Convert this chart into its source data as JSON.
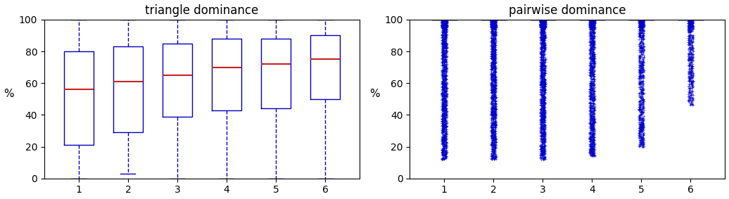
{
  "triangle_title": "triangle dominance",
  "pairwise_title": "pairwise dominance",
  "ylabel": "%",
  "iterations": [
    1,
    2,
    3,
    4,
    5,
    6
  ],
  "triangle_stats": {
    "medians": [
      56,
      61,
      65,
      70,
      72,
      75
    ],
    "q1": [
      21,
      29,
      39,
      43,
      44,
      50
    ],
    "q3": [
      80,
      83,
      85,
      88,
      88,
      90
    ],
    "whislo": [
      0,
      3,
      0,
      0,
      0,
      0
    ],
    "whishi": [
      100,
      100,
      100,
      100,
      100,
      100
    ]
  },
  "box_color": "#0000bb",
  "median_color": "#cc2222",
  "flier_color": "#0000cc",
  "ylim": [
    0,
    100
  ],
  "yticks": [
    0,
    20,
    40,
    60,
    80,
    100
  ],
  "figsize": [
    10.36,
    2.83
  ],
  "dpi": 100,
  "pairwise_configs": [
    {
      "min": 12,
      "max": 100,
      "n_fliers": 1100,
      "q1": 100,
      "q3": 100,
      "med": 100,
      "whislo": 100,
      "whishi": 100
    },
    {
      "min": 12,
      "max": 100,
      "n_fliers": 1100,
      "q1": 100,
      "q3": 100,
      "med": 100,
      "whislo": 100,
      "whishi": 100
    },
    {
      "min": 12,
      "max": 100,
      "n_fliers": 1100,
      "q1": 100,
      "q3": 100,
      "med": 100,
      "whislo": 100,
      "whishi": 100
    },
    {
      "min": 14,
      "max": 96,
      "n_fliers": 900,
      "q1": 100,
      "q3": 100,
      "med": 100,
      "whislo": 100,
      "whishi": 100
    },
    {
      "min": 20,
      "max": 96,
      "n_fliers": 600,
      "q1": 100,
      "q3": 100,
      "med": 100,
      "whislo": 100,
      "whishi": 100
    },
    {
      "min": 46,
      "max": 100,
      "n_fliers": 350,
      "q1": 100,
      "q3": 100,
      "med": 100,
      "whislo": 100,
      "whishi": 100
    }
  ]
}
